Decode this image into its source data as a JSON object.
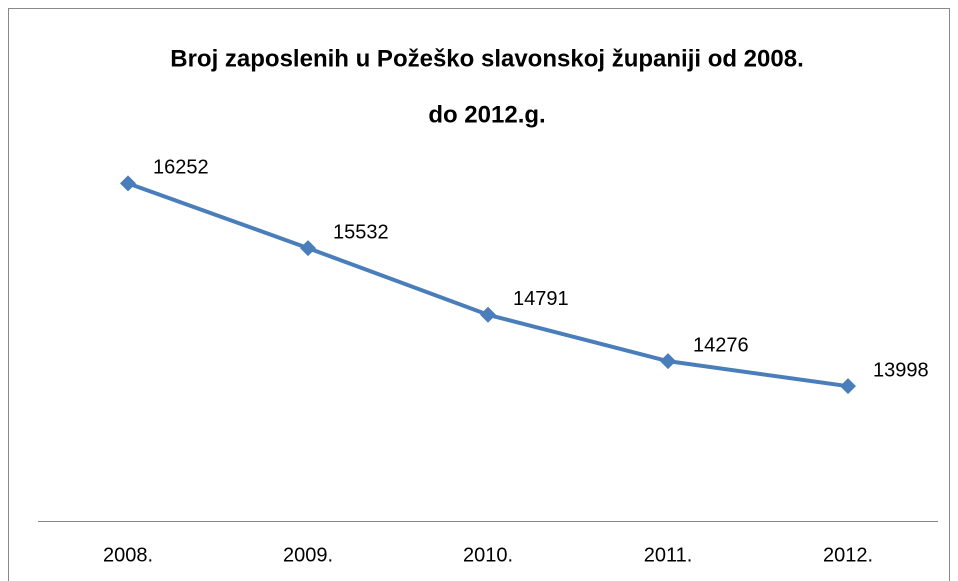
{
  "chart_data": {
    "type": "line",
    "title": [
      "Broj zaposlenih u Požeško slavonskoj županiji  od 2008.",
      "do 2012.g."
    ],
    "categories": [
      "2008.",
      "2009.",
      "2010.",
      "2011.",
      "2012."
    ],
    "values": [
      16252,
      15532,
      14791,
      14276,
      13998
    ],
    "color": "#4a7ebb",
    "ylim": [
      12500,
      16500
    ]
  }
}
